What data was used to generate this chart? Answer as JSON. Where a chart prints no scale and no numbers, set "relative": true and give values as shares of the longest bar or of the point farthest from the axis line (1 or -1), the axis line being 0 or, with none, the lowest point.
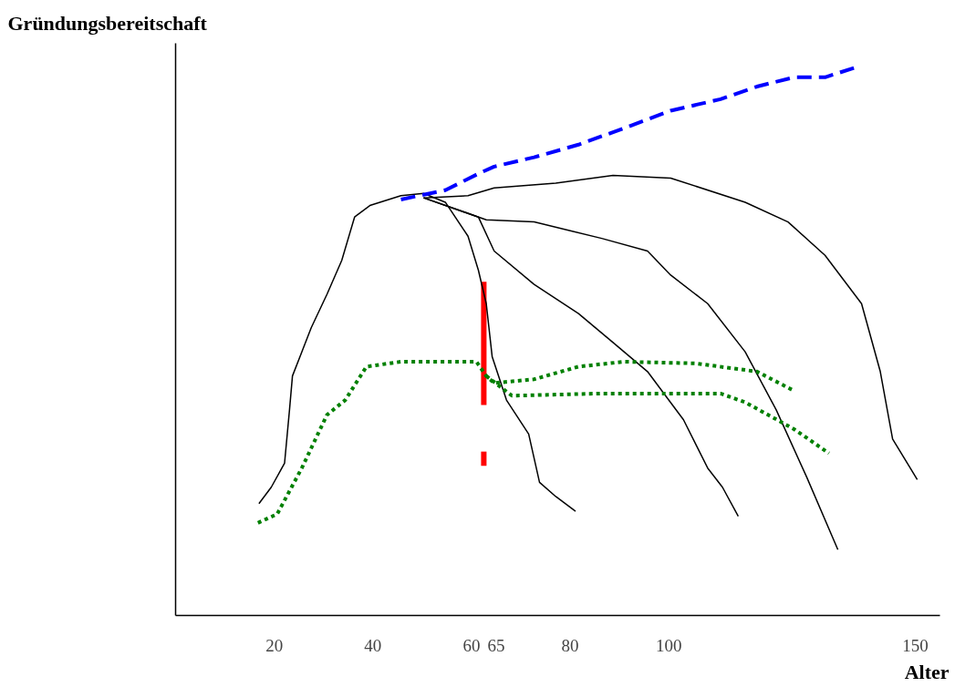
{
  "chart_data": {
    "type": "line",
    "relative": true,
    "xlabel": "Alter",
    "ylabel": "Gründungsbereitschaft",
    "xlim": [
      0,
      155
    ],
    "xticks": [
      20,
      40,
      60,
      65,
      80,
      100,
      150
    ],
    "grid": false,
    "tick_labels": "x",
    "series": [
      {
        "color": "#000000",
        "line_style": "solid",
        "x": [
          16.9,
          19.4,
          22.1,
          23.1,
          23.7,
          25.6,
          27.5,
          30.7,
          33.7,
          36.3,
          39.4,
          45.7,
          50.3,
          54.7,
          59.3,
          61.4,
          63.0,
          64.2,
          67.1,
          71.6,
          73.8,
          77.1,
          81.1
        ],
        "values": [
          0.204,
          0.234,
          0.278,
          0.375,
          0.437,
          0.481,
          0.525,
          0.586,
          0.648,
          0.727,
          0.748,
          0.766,
          0.77,
          0.754,
          0.692,
          0.63,
          0.569,
          0.472,
          0.393,
          0.331,
          0.243,
          0.217,
          0.19
        ]
      },
      {
        "color": "#000000",
        "line_style": "solid",
        "x": [
          50.3,
          61.4,
          64.6,
          72.7,
          81.7,
          88.7,
          95.7,
          103.0,
          107.9,
          110.9,
          114.1
        ],
        "values": [
          0.762,
          0.727,
          0.665,
          0.604,
          0.551,
          0.498,
          0.445,
          0.357,
          0.269,
          0.234,
          0.181
        ]
      },
      {
        "color": "#000000",
        "line_style": "solid",
        "x": [
          50.3,
          63.0,
          72.7,
          86.4,
          95.7,
          100.4,
          107.9,
          115.5,
          121.8,
          128.0,
          134.3
        ],
        "values": [
          0.762,
          0.722,
          0.718,
          0.688,
          0.665,
          0.621,
          0.569,
          0.481,
          0.375,
          0.252,
          0.12
        ]
      },
      {
        "color": "#000000",
        "line_style": "solid",
        "x": [
          50.3,
          59.3,
          64.6,
          77.1,
          88.7,
          100.4,
          115.5,
          124.2,
          131.7,
          139.1,
          142.9,
          145.4,
          150.4
        ],
        "values": [
          0.762,
          0.766,
          0.78,
          0.789,
          0.803,
          0.798,
          0.754,
          0.718,
          0.657,
          0.569,
          0.445,
          0.322,
          0.248
        ]
      },
      {
        "color": "#0000ff",
        "line_style": "dashed",
        "x": [
          45.7,
          54.7,
          61.4,
          64.6,
          72.7,
          81.7,
          90.9,
          100.4,
          110.5,
          117.9,
          125.4,
          131.7,
          137.9
        ],
        "values": [
          0.759,
          0.776,
          0.806,
          0.819,
          0.836,
          0.859,
          0.889,
          0.921,
          0.942,
          0.965,
          0.982,
          0.982,
          1.0
        ]
      },
      {
        "color": "#008000",
        "line_style": "dotted",
        "x": [
          16.7,
          20.6,
          25.6,
          30.7,
          34.4,
          38.7,
          45.7,
          61.0,
          63.0,
          64.6,
          72.7,
          81.7,
          90.9,
          105.4,
          117.9,
          125.4
        ],
        "values": [
          0.169,
          0.185,
          0.269,
          0.366,
          0.393,
          0.454,
          0.463,
          0.463,
          0.437,
          0.424,
          0.431,
          0.454,
          0.463,
          0.46,
          0.445,
          0.41
        ]
      },
      {
        "color": "#008000",
        "line_style": "dotted",
        "x": [
          63.0,
          68.2,
          86.4,
          110.5,
          115.5,
          125.4,
          132.5
        ],
        "values": [
          0.437,
          0.401,
          0.405,
          0.405,
          0.389,
          0.34,
          0.296
        ]
      },
      {
        "color": "#ff0000",
        "line_style": "solid",
        "x": [
          62.5,
          62.5
        ],
        "values": [
          0.609,
          0.384
        ]
      },
      {
        "color": "#ff0000",
        "line_style": "solid",
        "x": [
          62.5,
          62.5
        ],
        "values": [
          0.299,
          0.273
        ]
      }
    ]
  }
}
